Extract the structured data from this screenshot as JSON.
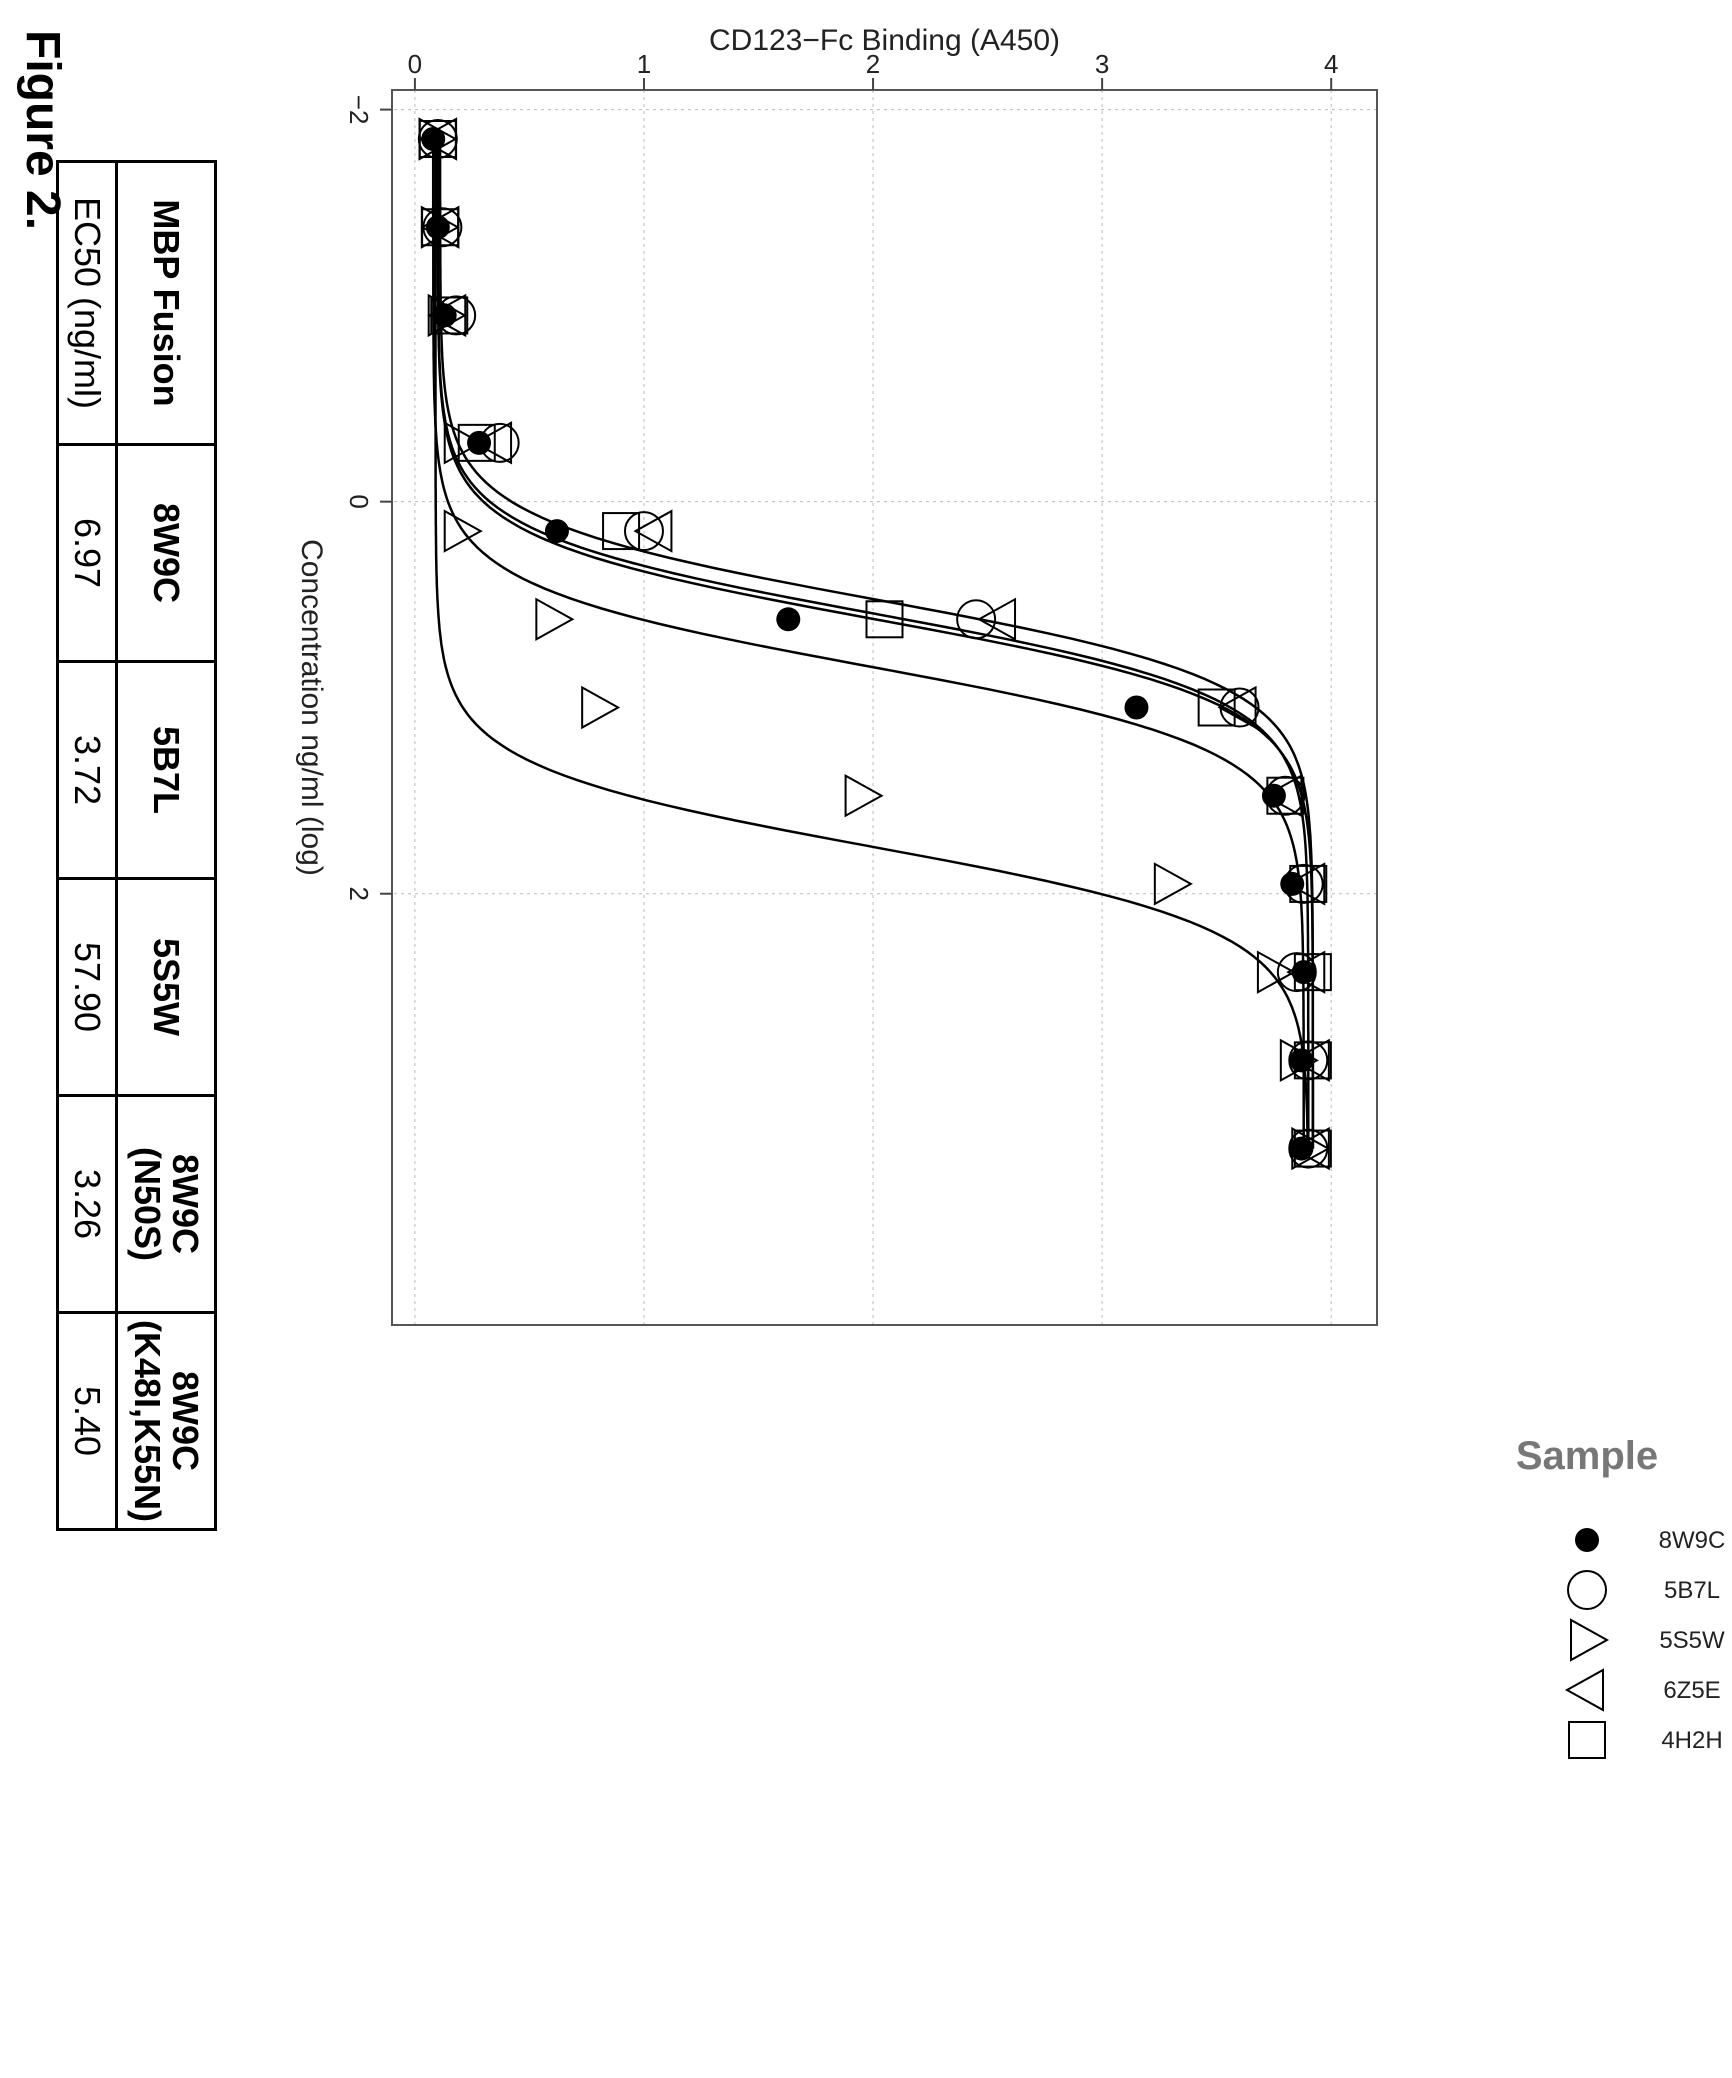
{
  "figure_label": "Figure 2.",
  "chart_data": {
    "type": "scatter",
    "title": "",
    "xlabel": "Concentration ng/ml (log)",
    "ylabel": "CD123−Fc Binding (A450)",
    "xlim": [
      -2.1,
      4.2
    ],
    "ylim": [
      -0.1,
      4.2
    ],
    "x_ticks": [
      -2,
      0,
      2
    ],
    "x_tick_labels": [
      "−2",
      "0",
      "2"
    ],
    "y_ticks": [
      0,
      1,
      2,
      3,
      4
    ],
    "y_tick_labels": [
      "0",
      "1",
      "2",
      "3",
      "4"
    ],
    "grid": true,
    "legend_title": "Sample",
    "legend_placement": "right",
    "x": [
      -1.85,
      -1.4,
      -0.95,
      -0.3,
      0.15,
      0.6,
      1.05,
      1.5,
      1.95,
      2.4,
      2.85,
      3.3
    ],
    "series": [
      {
        "name": "8W9C",
        "marker": "filled-circle",
        "values": [
          0.08,
          0.1,
          0.13,
          0.28,
          0.62,
          1.63,
          3.15,
          3.75,
          3.83,
          3.88,
          3.87,
          3.87
        ],
        "ec50_log": 0.84
      },
      {
        "name": "5B7L",
        "marker": "open-circle",
        "values": [
          0.1,
          0.12,
          0.18,
          0.37,
          1.0,
          2.45,
          3.6,
          3.8,
          3.88,
          3.85,
          3.9,
          3.9
        ],
        "ec50_log": 0.57
      },
      {
        "name": "5S5W",
        "marker": "triangle-up",
        "values": [
          0.09,
          0.1,
          0.13,
          0.2,
          0.2,
          0.6,
          0.8,
          1.95,
          3.3,
          3.75,
          3.85,
          3.9
        ],
        "ec50_log": 1.76
      },
      {
        "name": "6Z5E",
        "marker": "triangle-down",
        "values": [
          0.11,
          0.12,
          0.15,
          0.35,
          1.05,
          2.55,
          3.6,
          3.8,
          3.9,
          3.9,
          3.92,
          3.92
        ],
        "ec50_log": 0.5
      },
      {
        "name": "4H2H",
        "marker": "open-square",
        "values": [
          0.1,
          0.11,
          0.15,
          0.27,
          0.9,
          2.05,
          3.5,
          3.8,
          3.9,
          3.92,
          3.92,
          3.92
        ],
        "ec50_log": 0.6
      }
    ]
  },
  "table": {
    "header": [
      "MBP Fusion",
      "8W9C",
      "5B7L",
      "5S5W",
      "8W9C\n(N50S)",
      "8W9C\n(K48I,K55N)"
    ],
    "row_label": "EC50 (ng/ml)",
    "values": [
      "6.97",
      "3.72",
      "57.90",
      "3.26",
      "5.40"
    ]
  }
}
